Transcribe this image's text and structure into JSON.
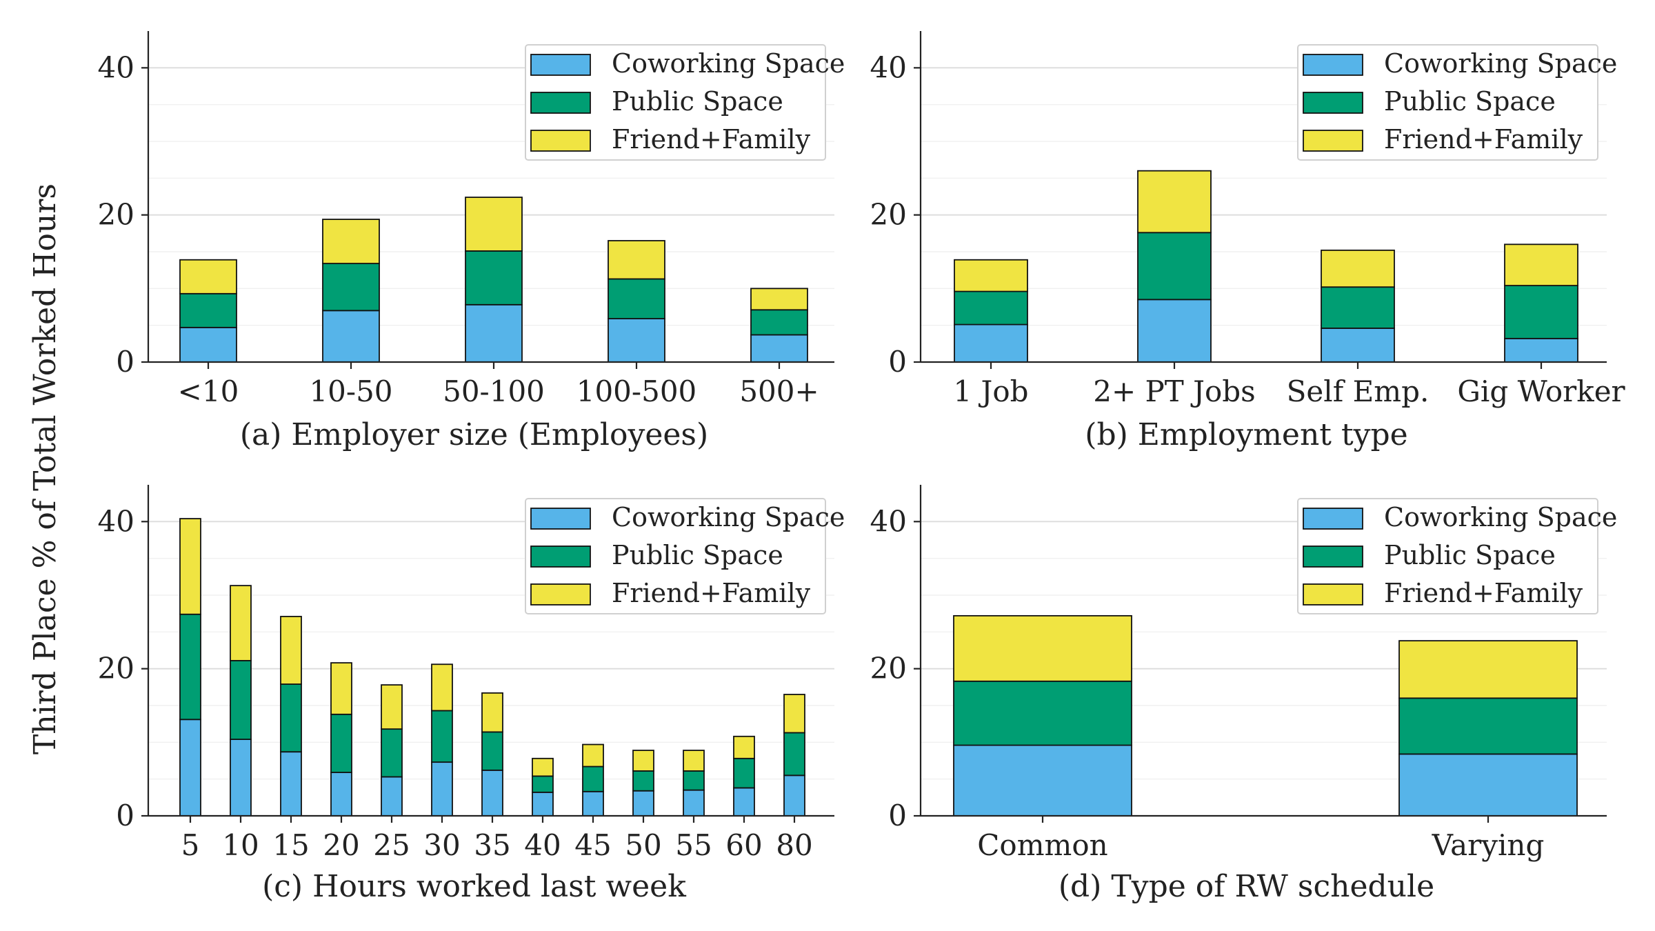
{
  "figure": {
    "shared_ylabel": "Third Place % of Total Worked Hours",
    "legend": [
      "Coworking Space",
      "Public Space",
      "Friend+Family"
    ],
    "colors": {
      "Coworking Space": "#56b4e9",
      "Public Space": "#009e73",
      "Friend+Family": "#f0e442"
    }
  },
  "chart_data": [
    {
      "type": "bar",
      "stacked": true,
      "title": "",
      "xlabel": "(a) Employer size (Employees)",
      "ylabel": "Third Place % of Total Worked Hours",
      "ylim": [
        0,
        45
      ],
      "yticks": [
        0,
        20,
        40
      ],
      "grid": true,
      "legend_position": "top-right",
      "categories": [
        "<10",
        "10-50",
        "50-100",
        "100-500",
        "500+"
      ],
      "series": [
        {
          "name": "Coworking Space",
          "color": "#56b4e9",
          "values": [
            4.7,
            7.0,
            7.8,
            5.9,
            3.7
          ]
        },
        {
          "name": "Public Space",
          "color": "#009e73",
          "values": [
            4.6,
            6.4,
            7.3,
            5.4,
            3.4
          ]
        },
        {
          "name": "Friend+Family",
          "color": "#f0e442",
          "values": [
            4.6,
            6.0,
            7.3,
            5.2,
            2.9
          ]
        }
      ]
    },
    {
      "type": "bar",
      "stacked": true,
      "title": "",
      "xlabel": "(b) Employment type",
      "ylabel": "Third Place % of Total Worked Hours",
      "ylim": [
        0,
        45
      ],
      "yticks": [
        0,
        20,
        40
      ],
      "grid": true,
      "legend_position": "top-right",
      "categories": [
        "1 Job",
        "2+ PT Jobs",
        "Self Emp.",
        "Gig Worker"
      ],
      "series": [
        {
          "name": "Coworking Space",
          "color": "#56b4e9",
          "values": [
            5.1,
            8.5,
            4.6,
            3.2
          ]
        },
        {
          "name": "Public Space",
          "color": "#009e73",
          "values": [
            4.5,
            9.1,
            5.6,
            7.2
          ]
        },
        {
          "name": "Friend+Family",
          "color": "#f0e442",
          "values": [
            4.3,
            8.4,
            5.0,
            5.6
          ]
        }
      ]
    },
    {
      "type": "bar",
      "stacked": true,
      "title": "",
      "xlabel": "(c) Hours worked last week",
      "ylabel": "Third Place % of Total Worked Hours",
      "ylim": [
        0,
        45
      ],
      "yticks": [
        0,
        20,
        40
      ],
      "grid": true,
      "legend_position": "top-right",
      "categories": [
        "5",
        "10",
        "15",
        "20",
        "25",
        "30",
        "35",
        "40",
        "45",
        "50",
        "55",
        "60",
        "80"
      ],
      "series": [
        {
          "name": "Coworking Space",
          "color": "#56b4e9",
          "values": [
            13.1,
            10.4,
            8.7,
            5.9,
            5.3,
            7.3,
            6.2,
            3.2,
            3.3,
            3.4,
            3.5,
            3.8,
            5.5
          ]
        },
        {
          "name": "Public Space",
          "color": "#009e73",
          "values": [
            14.3,
            10.7,
            9.2,
            7.9,
            6.5,
            7.0,
            5.2,
            2.2,
            3.4,
            2.7,
            2.6,
            4.0,
            5.8
          ]
        },
        {
          "name": "Friend+Family",
          "color": "#f0e442",
          "values": [
            13.0,
            10.2,
            9.2,
            7.0,
            6.0,
            6.3,
            5.3,
            2.4,
            3.0,
            2.8,
            2.8,
            3.0,
            5.2
          ]
        }
      ]
    },
    {
      "type": "bar",
      "stacked": true,
      "title": "",
      "xlabel": "(d) Type of RW schedule",
      "ylabel": "Third Place % of Total Worked Hours",
      "ylim": [
        0,
        45
      ],
      "yticks": [
        0,
        20,
        40
      ],
      "grid": true,
      "legend_position": "top-right",
      "categories": [
        "Common",
        "Varying"
      ],
      "series": [
        {
          "name": "Coworking Space",
          "color": "#56b4e9",
          "values": [
            9.6,
            8.4
          ]
        },
        {
          "name": "Public Space",
          "color": "#009e73",
          "values": [
            8.7,
            7.6
          ]
        },
        {
          "name": "Friend+Family",
          "color": "#f0e442",
          "values": [
            8.9,
            7.8
          ]
        }
      ]
    }
  ]
}
